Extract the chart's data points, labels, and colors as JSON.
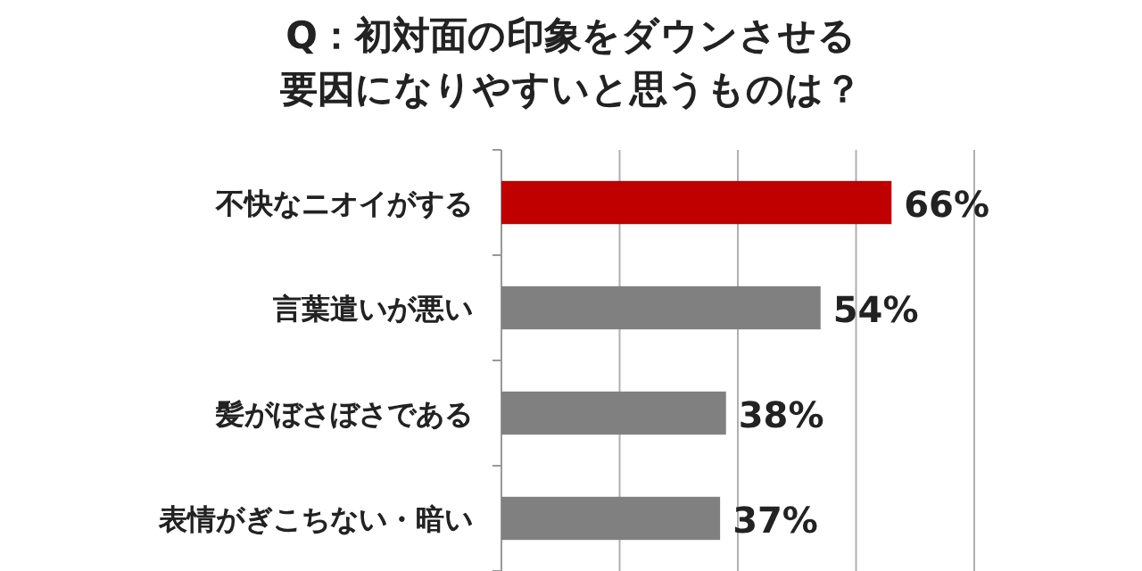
{
  "chart_data": {
    "type": "bar",
    "orientation": "horizontal",
    "title": "Q：初対面の印象をダウンさせる要因になりやすいと思うものは？",
    "categories": [
      "不快なニオイがする",
      "言葉遣いが悪い",
      "髪がぼさぼさである",
      "表情がぎこちない・暗い"
    ],
    "values": [
      66,
      54,
      38,
      37
    ],
    "colors": [
      "#c00000",
      "#808080",
      "#808080",
      "#808080"
    ],
    "value_labels": [
      "66%",
      "54%",
      "38%",
      "37%"
    ],
    "xlim": [
      0,
      80
    ],
    "xticks": [
      {
        "value": 0,
        "label": null
      },
      {
        "value": 20,
        "label": null
      },
      {
        "value": 40,
        "label": null
      },
      {
        "value": 60,
        "label": null
      },
      {
        "value": 80,
        "label": null
      }
    ],
    "grid": "x",
    "tick_labels": "y"
  }
}
